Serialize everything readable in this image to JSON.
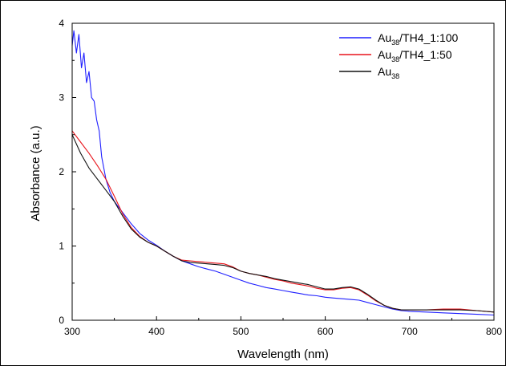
{
  "chart_data": {
    "type": "line",
    "title": "",
    "xlabel": "Wavelength (nm)",
    "ylabel": "Absorbance (a.u.)",
    "xlim": [
      300,
      800
    ],
    "ylim": [
      0,
      4
    ],
    "xticks": [
      300,
      400,
      500,
      600,
      700,
      800
    ],
    "yticks": [
      0,
      1,
      2,
      3,
      4
    ],
    "xtick_labels": [
      "300",
      "400",
      "500",
      "600",
      "700",
      "800"
    ],
    "ytick_labels": [
      "0",
      "1",
      "2",
      "3",
      "4"
    ],
    "grid": false,
    "legend_position": "top-right",
    "series": [
      {
        "name_main": "Au",
        "name_sub": "38",
        "name_rest": "/TH4_1:100",
        "color": "#1f1fff",
        "x": [
          300,
          302,
          305,
          308,
          311,
          314,
          317,
          320,
          323,
          326,
          329,
          332,
          335,
          340,
          345,
          350,
          360,
          370,
          380,
          390,
          400,
          410,
          420,
          430,
          440,
          450,
          460,
          470,
          480,
          490,
          500,
          510,
          520,
          530,
          540,
          550,
          560,
          570,
          580,
          590,
          600,
          610,
          620,
          630,
          640,
          650,
          660,
          670,
          680,
          690,
          700,
          720,
          740,
          760,
          780,
          800
        ],
        "y": [
          3.7,
          3.9,
          3.6,
          3.85,
          3.4,
          3.6,
          3.2,
          3.35,
          3.0,
          2.95,
          2.7,
          2.55,
          2.2,
          1.9,
          1.72,
          1.6,
          1.45,
          1.3,
          1.17,
          1.08,
          1.01,
          0.93,
          0.86,
          0.8,
          0.76,
          0.72,
          0.69,
          0.66,
          0.62,
          0.58,
          0.54,
          0.5,
          0.47,
          0.44,
          0.42,
          0.4,
          0.38,
          0.36,
          0.34,
          0.33,
          0.31,
          0.3,
          0.29,
          0.28,
          0.27,
          0.24,
          0.21,
          0.18,
          0.15,
          0.13,
          0.12,
          0.11,
          0.1,
          0.09,
          0.08,
          0.07
        ]
      },
      {
        "name_main": "Au",
        "name_sub": "38",
        "name_rest": "/TH4_1:50",
        "color": "#e8141b",
        "x": [
          300,
          310,
          320,
          330,
          340,
          350,
          360,
          370,
          380,
          390,
          400,
          410,
          420,
          430,
          440,
          450,
          460,
          470,
          480,
          490,
          500,
          510,
          520,
          530,
          540,
          550,
          560,
          570,
          580,
          590,
          600,
          610,
          620,
          630,
          640,
          650,
          660,
          670,
          680,
          690,
          700,
          720,
          740,
          760,
          780,
          800
        ],
        "y": [
          2.55,
          2.4,
          2.25,
          2.08,
          1.9,
          1.67,
          1.43,
          1.25,
          1.13,
          1.05,
          1.0,
          0.93,
          0.86,
          0.81,
          0.8,
          0.79,
          0.78,
          0.77,
          0.76,
          0.72,
          0.66,
          0.63,
          0.61,
          0.58,
          0.55,
          0.53,
          0.5,
          0.48,
          0.46,
          0.43,
          0.41,
          0.41,
          0.43,
          0.44,
          0.41,
          0.34,
          0.26,
          0.2,
          0.16,
          0.14,
          0.14,
          0.14,
          0.15,
          0.15,
          0.13,
          0.11
        ]
      },
      {
        "name_main": "Au",
        "name_sub": "38",
        "name_rest": "",
        "color": "#111111",
        "x": [
          300,
          310,
          320,
          330,
          340,
          350,
          360,
          370,
          380,
          390,
          400,
          410,
          420,
          430,
          440,
          450,
          460,
          470,
          480,
          490,
          500,
          510,
          520,
          530,
          540,
          550,
          560,
          570,
          580,
          590,
          600,
          610,
          620,
          630,
          640,
          650,
          660,
          670,
          680,
          690,
          700,
          720,
          740,
          760,
          780,
          800
        ],
        "y": [
          2.5,
          2.25,
          2.05,
          1.9,
          1.75,
          1.6,
          1.4,
          1.23,
          1.12,
          1.05,
          1.0,
          0.93,
          0.86,
          0.8,
          0.78,
          0.77,
          0.76,
          0.75,
          0.74,
          0.71,
          0.66,
          0.63,
          0.61,
          0.59,
          0.56,
          0.54,
          0.52,
          0.5,
          0.48,
          0.45,
          0.42,
          0.42,
          0.44,
          0.45,
          0.42,
          0.35,
          0.27,
          0.2,
          0.16,
          0.14,
          0.14,
          0.14,
          0.14,
          0.14,
          0.13,
          0.11
        ]
      }
    ]
  }
}
